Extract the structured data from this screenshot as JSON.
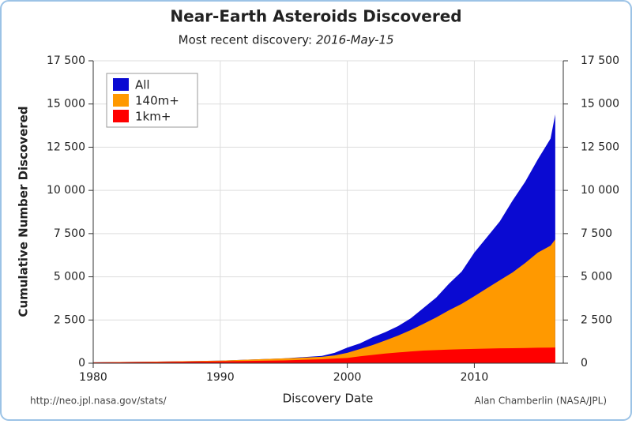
{
  "chart_data": {
    "type": "area",
    "title": "Near-Earth Asteroids Discovered",
    "subtitle": "Most recent discovery:",
    "subtitle_date": "2016-May-15",
    "x_label": "Discovery Date",
    "y_label": "Cumulative Number Discovered",
    "source": "http://neo.jpl.nasa.gov/stats/",
    "credit": "Alan Chamberlin (NASA/JPL)",
    "x": [
      1980,
      1985,
      1990,
      1995,
      1998,
      1999,
      2000,
      2001,
      2002,
      2003,
      2004,
      2005,
      2006,
      2007,
      2008,
      2009,
      2010,
      2011,
      2012,
      2013,
      2014,
      2015,
      2016,
      2016.37
    ],
    "series": [
      {
        "name": "All",
        "color": "#0a0ad2",
        "values": [
          50,
          90,
          150,
          280,
          420,
          600,
          900,
          1150,
          1500,
          1800,
          2150,
          2600,
          3200,
          3800,
          4600,
          5300,
          6400,
          7300,
          8200,
          9400,
          10500,
          11800,
          13000,
          14400
        ]
      },
      {
        "name": "140m+",
        "color": "#ff9900",
        "values": [
          50,
          90,
          150,
          280,
          370,
          450,
          600,
          820,
          1050,
          1320,
          1600,
          1920,
          2280,
          2650,
          3060,
          3430,
          3880,
          4340,
          4800,
          5250,
          5800,
          6400,
          6800,
          7170
        ]
      },
      {
        "name": "1km+",
        "color": "#ff0000",
        "values": [
          40,
          70,
          110,
          160,
          230,
          270,
          300,
          400,
          480,
          560,
          620,
          680,
          730,
          760,
          790,
          810,
          830,
          845,
          860,
          870,
          880,
          895,
          905,
          910
        ]
      }
    ],
    "xlim": [
      1980,
      2017
    ],
    "xticks": [
      1980,
      1990,
      2000,
      2010
    ],
    "ylim": [
      0,
      17500
    ],
    "yticks": [
      0,
      {
        "value": 2500,
        "label": "2 500"
      },
      {
        "value": 5000,
        "label": "5 000"
      },
      {
        "value": 7500,
        "label": "7 500"
      },
      {
        "value": 10000,
        "label": "10 000"
      },
      {
        "value": 12500,
        "label": "12 500"
      },
      {
        "value": 15000,
        "label": "15 000"
      },
      {
        "value": 17500,
        "label": "17 500"
      }
    ],
    "grid": true,
    "legend": "upper left"
  }
}
